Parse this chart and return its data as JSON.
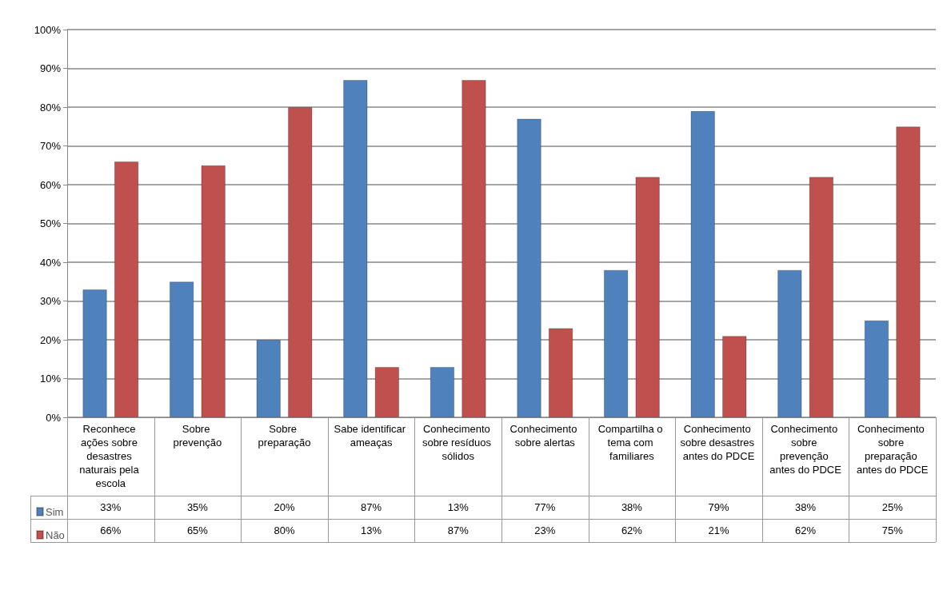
{
  "chart_data": {
    "type": "bar",
    "categories": [
      "Reconhece ações sobre desastres naturais pela escola",
      "Sobre prevenção",
      "Sobre preparação",
      "Sabe identificar ameaças",
      "Conhecimento sobre resíduos sólidos",
      "Conhecimento sobre alertas",
      "Compartilha o tema com familiares",
      "Conhecimento sobre desastres antes do PDCE",
      "Conhecimento sobre prevenção antes do PDCE",
      "Conhecimento sobre preparação antes do PDCE"
    ],
    "series": [
      {
        "name": "Sim",
        "color": "#4f81bd",
        "values": [
          33,
          35,
          20,
          87,
          13,
          77,
          38,
          79,
          38,
          25
        ],
        "value_labels": [
          "33%",
          "35%",
          "20%",
          "87%",
          "13%",
          "77%",
          "38%",
          "79%",
          "38%",
          "25%"
        ]
      },
      {
        "name": "Não",
        "color": "#c0504d",
        "values": [
          66,
          65,
          80,
          13,
          87,
          23,
          62,
          21,
          62,
          75
        ],
        "value_labels": [
          "66%",
          "65%",
          "80%",
          "13%",
          "87%",
          "23%",
          "62%",
          "21%",
          "62%",
          "75%"
        ]
      }
    ],
    "ylim": [
      0,
      100
    ],
    "yticks": [
      {
        "value": 0,
        "label": "0%"
      },
      {
        "value": 10,
        "label": "10%"
      },
      {
        "value": 20,
        "label": "20%"
      },
      {
        "value": 30,
        "label": "30%"
      },
      {
        "value": 40,
        "label": "40%"
      },
      {
        "value": 50,
        "label": "50%"
      },
      {
        "value": 60,
        "label": "60%"
      },
      {
        "value": 70,
        "label": "70%"
      },
      {
        "value": 80,
        "label": "80%"
      },
      {
        "value": 90,
        "label": "90%"
      },
      {
        "value": 100,
        "label": "100%"
      }
    ],
    "grid": "y",
    "legend": "bottom left"
  }
}
